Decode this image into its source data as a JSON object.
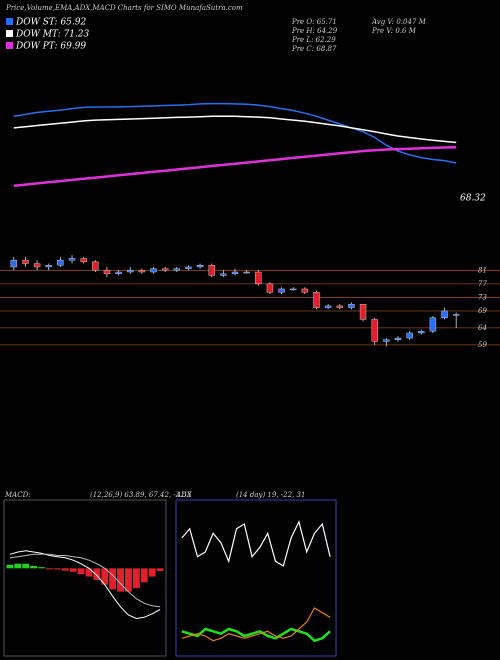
{
  "chart_data": [
    {
      "type": "line",
      "title": "Price,Volume,EMA,ADX,MACD Charts for SIMO MunafaSutra.com",
      "annotation": "68.32",
      "ylim": [
        55,
        90
      ],
      "series": [
        {
          "name": "DOW ST: 65.92",
          "color": "#2a6ef0",
          "values": [
            78,
            78.5,
            79,
            79.3,
            79.6,
            80,
            80.3,
            80.4,
            80.4,
            80.4,
            80.5,
            80.6,
            80.7,
            80.8,
            80.9,
            81,
            81.2,
            81.3,
            81.3,
            81.2,
            81.1,
            80.9,
            80.5,
            80,
            79.5,
            78.8,
            78,
            77,
            76,
            75,
            74,
            72.5,
            70.5,
            69,
            68,
            67.3,
            66.8,
            66.5,
            65.9
          ]
        },
        {
          "name": "DOW MT: 71.23",
          "color": "#ffffff",
          "values": [
            75,
            75.3,
            75.6,
            75.9,
            76.2,
            76.5,
            76.8,
            77,
            77.1,
            77.2,
            77.3,
            77.4,
            77.5,
            77.6,
            77.7,
            77.8,
            77.9,
            78,
            78,
            78,
            77.9,
            77.8,
            77.6,
            77.3,
            77,
            76.7,
            76.3,
            75.9,
            75.5,
            75,
            74.5,
            74,
            73.4,
            72.9,
            72.5,
            72.1,
            71.8,
            71.5,
            71.2
          ]
        },
        {
          "name": "DOW PT: 69.99",
          "color": "#e030d8",
          "values": [
            60,
            60.3,
            60.6,
            60.9,
            61.2,
            61.5,
            61.8,
            62.1,
            62.4,
            62.7,
            63,
            63.3,
            63.6,
            63.9,
            64.2,
            64.5,
            64.8,
            65.1,
            65.4,
            65.7,
            66,
            66.3,
            66.6,
            66.9,
            67.2,
            67.5,
            67.8,
            68.1,
            68.4,
            68.7,
            69,
            69.2,
            69.4,
            69.5,
            69.6,
            69.7,
            69.8,
            69.9,
            69.99
          ]
        }
      ]
    },
    {
      "type": "candlestick",
      "up_color": "#2a6ef0",
      "down_color": "#e0202a",
      "grid_color": "#8a4a2a",
      "ylim": [
        56,
        87
      ],
      "yticks": [
        81,
        77,
        73,
        69,
        64,
        59
      ],
      "open": [
        82,
        84,
        83,
        82,
        82.5,
        84,
        84.5,
        83.5,
        81,
        80,
        80.5,
        81,
        80.5,
        81.5,
        81,
        81.5,
        82,
        82.5,
        79.5,
        80,
        80.5,
        80.5,
        77,
        74.5,
        75.5,
        75.5,
        74.5,
        70,
        70.5,
        70,
        71,
        66.5,
        60,
        60.5,
        61,
        62.5,
        63,
        67,
        68
      ],
      "close": [
        84,
        83,
        82,
        82.5,
        84,
        84.5,
        83.5,
        81,
        80,
        80.5,
        81,
        80.5,
        81.5,
        81,
        81.5,
        82,
        82.5,
        79.5,
        80,
        80.5,
        80.5,
        77,
        74.5,
        75.5,
        75.5,
        74.5,
        70,
        70.5,
        70,
        71,
        66.5,
        60,
        60.5,
        61,
        62.5,
        63,
        67,
        69,
        68
      ],
      "high": [
        85,
        85,
        84,
        83,
        85,
        85.5,
        85,
        84,
        82,
        81,
        82,
        81.5,
        82,
        82,
        82,
        82.5,
        83,
        83,
        81,
        81.5,
        81,
        81,
        77.5,
        76,
        76,
        76,
        75,
        71,
        71,
        71.5,
        71,
        67,
        61,
        61.5,
        63,
        63.5,
        67.5,
        70,
        68.5
      ],
      "low": [
        81,
        82,
        81,
        81,
        82,
        83,
        83,
        80.5,
        79,
        79.5,
        80,
        80,
        80,
        80.5,
        80.5,
        81,
        81.5,
        79,
        79,
        79.5,
        80,
        76.5,
        74,
        74,
        75,
        74,
        69.5,
        69.5,
        69.5,
        69.5,
        66,
        59,
        58.5,
        60,
        60.5,
        62,
        62.5,
        66.5,
        64
      ]
    },
    {
      "type": "macd",
      "title": "MACD:",
      "subtitle": "(12,26,9) 63.89, 67.42, -3.53",
      "ylim": [
        -7,
        5
      ],
      "series": [
        {
          "color": "#ffffff",
          "values": [
            1.2,
            1.4,
            1.5,
            1.4,
            1.3,
            1.1,
            1,
            0.9,
            0.7,
            0.4,
            0,
            -0.6,
            -1.4,
            -2.4,
            -3.3,
            -4,
            -4.3,
            -4.2,
            -3.9,
            -3.53
          ]
        },
        {
          "color": "#bbbbbb",
          "values": [
            0.9,
            1,
            1.1,
            1.2,
            1.2,
            1.2,
            1.1,
            1.1,
            1,
            0.9,
            0.7,
            0.4,
            0,
            -0.6,
            -1.3,
            -2,
            -2.6,
            -3,
            -3.2,
            -3.3
          ]
        }
      ],
      "histogram": {
        "up_color": "#20d020",
        "down_color": "#e0202a",
        "values": [
          0.3,
          0.4,
          0.4,
          0.2,
          0.1,
          -0.1,
          -0.1,
          -0.2,
          -0.3,
          -0.5,
          -0.7,
          -1,
          -1.4,
          -1.8,
          -2,
          -2,
          -1.7,
          -1.2,
          -0.7,
          -0.23
        ]
      }
    },
    {
      "type": "adx",
      "title": "ADX",
      "subtitle": "(14 day) 19, -22, 31",
      "ylim": [
        0,
        60
      ],
      "series": [
        {
          "color": "#ffffff",
          "values": [
            48,
            52,
            40,
            42,
            50,
            46,
            38,
            52,
            54,
            40,
            44,
            50,
            38,
            36,
            48,
            55,
            42,
            50,
            54,
            40
          ]
        },
        {
          "color": "#20e020",
          "values": [
            8,
            7,
            6,
            9,
            8,
            7,
            9,
            8,
            6,
            7,
            8,
            6,
            5,
            7,
            9,
            8,
            7,
            4,
            5,
            8
          ]
        },
        {
          "color": "#e08020",
          "values": [
            5,
            6,
            7,
            6,
            4,
            5,
            7,
            6,
            5,
            6,
            7,
            8,
            6,
            5,
            6,
            9,
            12,
            18,
            16,
            14
          ]
        }
      ]
    }
  ],
  "stats": [
    "Pre O: 65.71",
    "Avg V: 0.047 M",
    "Pre H: 64.29",
    "Pre V: 0.6 M",
    "Pre L: 62.29",
    "Pre C: 68.87"
  ]
}
